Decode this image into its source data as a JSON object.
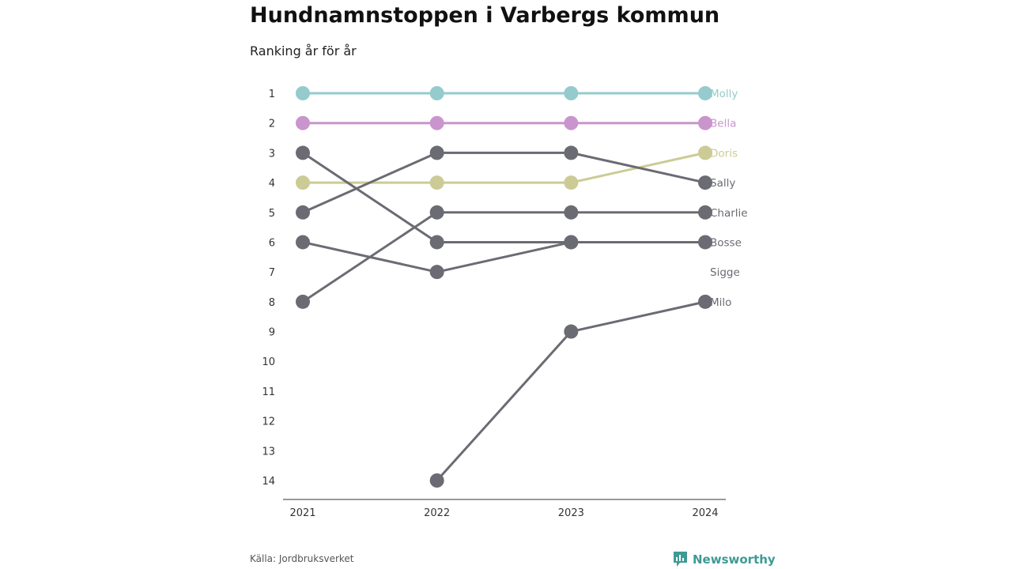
{
  "header": {
    "title": "Hundnamnstoppen i Varbergs kommun",
    "subtitle": "Ranking år för år"
  },
  "footer": {
    "source": "Källa: Jordbruksverket",
    "brand": "Newsworthy",
    "brand_icon": "bar-chart-logo-icon",
    "brand_color": "#3e9a94"
  },
  "chart_data": {
    "type": "line",
    "title": "Hundnamnstoppen i Varbergs kommun",
    "subtitle": "Ranking år för år",
    "xlabel": "",
    "ylabel": "",
    "x": [
      "2021",
      "2022",
      "2023",
      "2024"
    ],
    "y_ticks": [
      "1",
      "2",
      "3",
      "4",
      "5",
      "6",
      "7",
      "8",
      "9",
      "10",
      "11",
      "12",
      "13",
      "14"
    ],
    "ylim": [
      1,
      14
    ],
    "y_inverted": true,
    "grid": false,
    "series": [
      {
        "name": "Molly",
        "values": [
          1,
          1,
          1,
          1
        ],
        "color": "#95cbcc"
      },
      {
        "name": "Bella",
        "values": [
          2,
          2,
          2,
          2
        ],
        "color": "#c995cc"
      },
      {
        "name": "Doris",
        "values": [
          4,
          4,
          4,
          3
        ],
        "color": "#cccb95"
      },
      {
        "name": "Sally",
        "values": [
          5,
          3,
          3,
          4
        ],
        "color": "#6b6b73"
      },
      {
        "name": "Charlie",
        "values": [
          8,
          5,
          5,
          5
        ],
        "color": "#6b6b73"
      },
      {
        "name": "Bosse",
        "values": [
          3,
          6,
          6,
          6
        ],
        "color": "#6b6b73"
      },
      {
        "name": "Sigge",
        "values": [
          6,
          7,
          6,
          null
        ],
        "color": "#6b6b73"
      },
      {
        "name": "Milo",
        "values": [
          null,
          14,
          9,
          8
        ],
        "color": "#6b6b73"
      }
    ]
  }
}
